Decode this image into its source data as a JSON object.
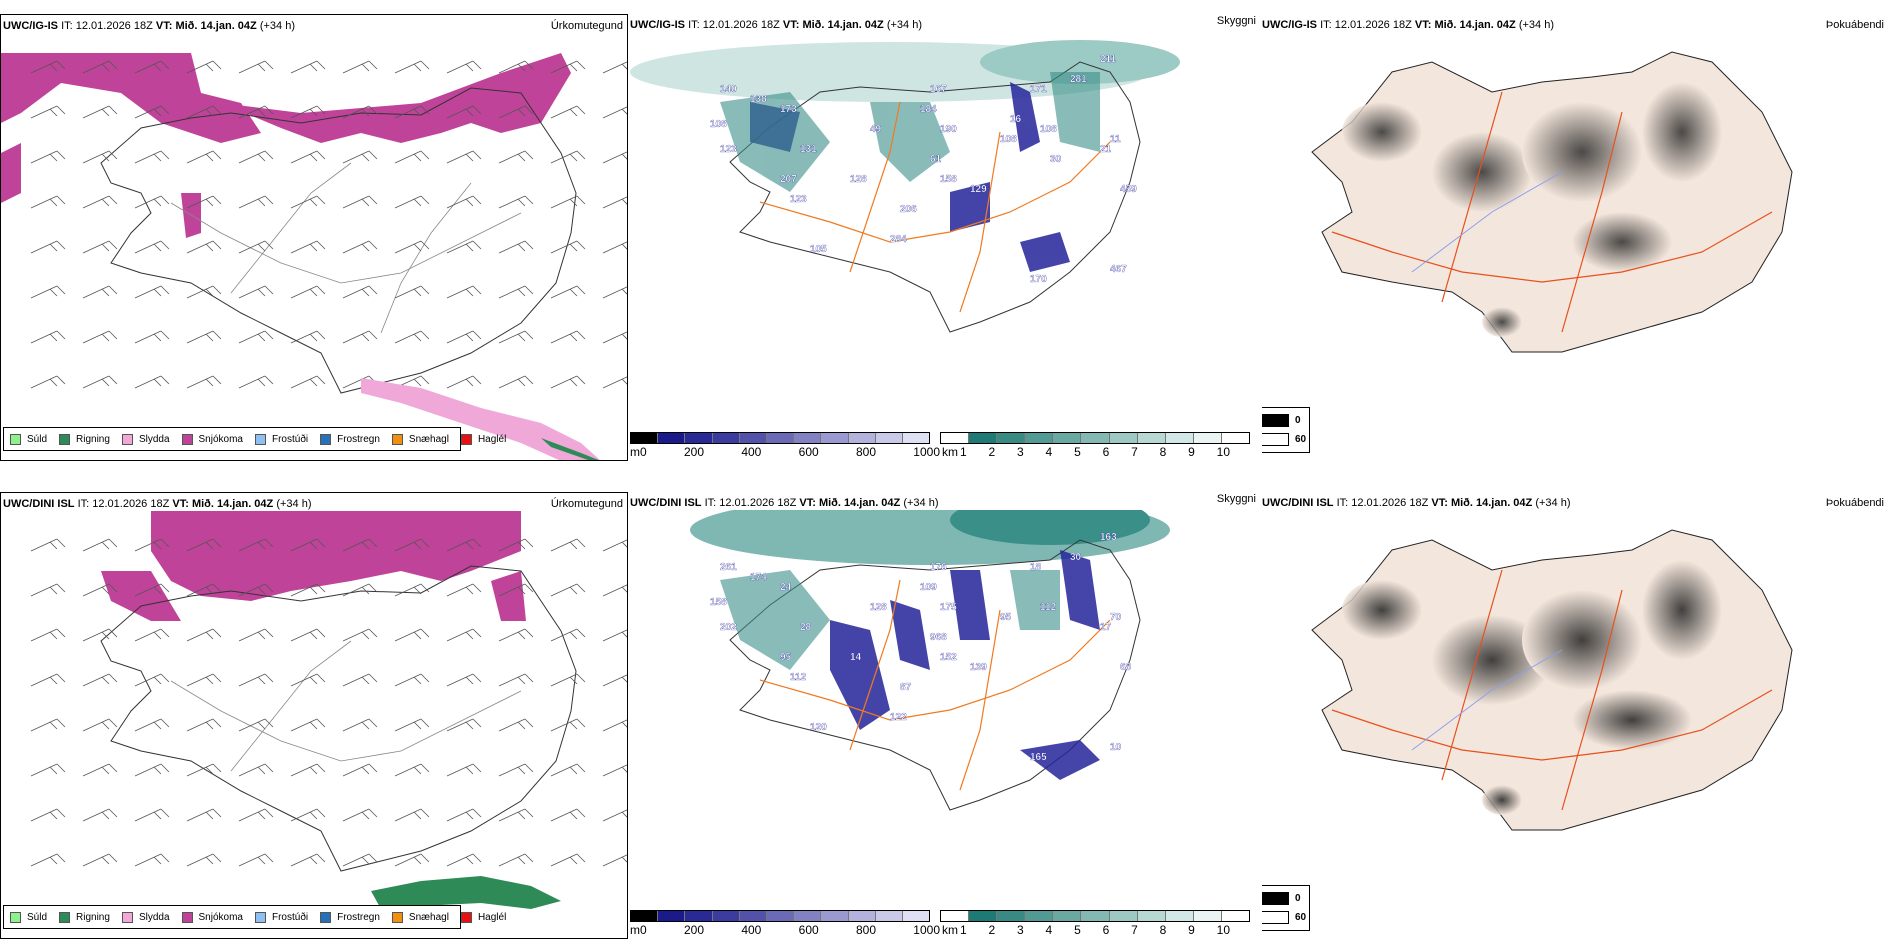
{
  "rows": [
    {
      "model": "UWC/IG-IS",
      "it_label": "IT:",
      "it_value": "12.01.2026 18Z",
      "vt_label": "VT:",
      "vt_value": "Mið. 14.jan. 04Z",
      "lead": "(+34 h)",
      "panel1_field": "Úrkomutegund",
      "panel2_field": "Skyggni",
      "panel3_field": "Þokuábendi",
      "labels": [
        "140",
        "138",
        "108",
        "123",
        "173",
        "131",
        "207",
        "123",
        "128",
        "49",
        "184",
        "167",
        "190",
        "61",
        "158",
        "108",
        "171",
        "108",
        "281",
        "211",
        "11",
        "206",
        "284",
        "129",
        "105",
        "170",
        "467",
        "459",
        "21",
        "30",
        "16"
      ]
    },
    {
      "model": "UWC/DINI ISL",
      "it_label": "IT:",
      "it_value": "12.01.2026 18Z",
      "vt_label": "VT:",
      "vt_value": "Mið. 14.jan. 04Z",
      "lead": "(+34 h)",
      "panel1_field": "Úrkomutegund",
      "panel2_field": "Skyggni",
      "panel3_field": "Þokuábendi",
      "labels": [
        "261",
        "174",
        "158",
        "202",
        "24",
        "28",
        "95",
        "112",
        "14",
        "128",
        "109",
        "176",
        "175",
        "968",
        "152",
        "95",
        "18",
        "112",
        "30",
        "163",
        "70",
        "87",
        "122",
        "139",
        "120",
        "165",
        "10",
        "68",
        "17"
      ]
    }
  ],
  "precip_legend": [
    {
      "label": "Súld",
      "color": "#8ef08e"
    },
    {
      "label": "Rigning",
      "color": "#2e8b57"
    },
    {
      "label": "Slydda",
      "color": "#f0a8d8"
    },
    {
      "label": "Snjókoma",
      "color": "#c0439a"
    },
    {
      "label": "Frostúði",
      "color": "#90c0f0"
    },
    {
      "label": "Frostregn",
      "color": "#2870b8"
    },
    {
      "label": "Snæhagl",
      "color": "#f09010"
    },
    {
      "label": "Haglél",
      "color": "#e81010"
    }
  ],
  "ceiling_bar": {
    "unit": "m",
    "ticks": [
      "0",
      "200",
      "400",
      "600",
      "800",
      "1000"
    ],
    "colors": [
      "#000000",
      "#1a1a8a",
      "#2a2a96",
      "#3c3ca0",
      "#5252aa",
      "#6a6ab6",
      "#8282c2",
      "#9a9ad0",
      "#b2b2dc",
      "#cacae8",
      "#e0e0f4"
    ]
  },
  "visibility_bar": {
    "unit": "km",
    "ticks": [
      "1",
      "2",
      "3",
      "4",
      "5",
      "6",
      "7",
      "8",
      "9",
      "10"
    ],
    "colors": [
      "#ffffff",
      "#1e7a74",
      "#3a8a84",
      "#529a94",
      "#6aa8a2",
      "#84b8b2",
      "#9ec8c4",
      "#b8d8d4",
      "#d2e8e6",
      "#eaf4f3",
      "#ffffff"
    ]
  },
  "fog_legend": {
    "items": [
      {
        "label": "0",
        "color": "#000000"
      },
      {
        "label": "60",
        "color": "#ffffff"
      }
    ]
  },
  "colors": {
    "snow": "#c0439a",
    "sleet": "#f0a8d8",
    "rain": "#2e8b57",
    "teal": "#3a8f88",
    "ceiling": "#24249a",
    "road": "#f07a20",
    "land": "#f3e6dc"
  }
}
